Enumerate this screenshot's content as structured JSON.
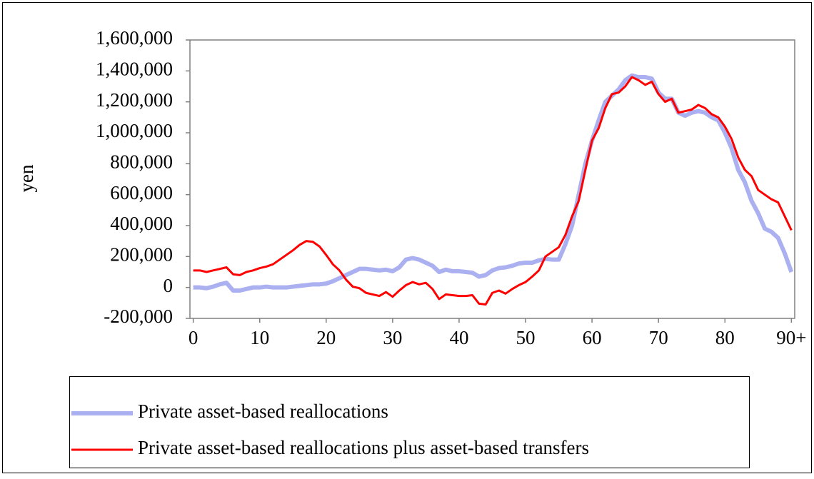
{
  "chart_data": {
    "type": "line",
    "y_label": "yen",
    "x": [
      0,
      1,
      2,
      3,
      4,
      5,
      6,
      7,
      8,
      9,
      10,
      11,
      12,
      13,
      14,
      15,
      16,
      17,
      18,
      19,
      20,
      21,
      22,
      23,
      24,
      25,
      26,
      27,
      28,
      29,
      30,
      31,
      32,
      33,
      34,
      35,
      36,
      37,
      38,
      39,
      40,
      41,
      42,
      43,
      44,
      45,
      46,
      47,
      48,
      49,
      50,
      51,
      52,
      53,
      54,
      55,
      56,
      57,
      58,
      59,
      60,
      61,
      62,
      63,
      64,
      65,
      66,
      67,
      68,
      69,
      70,
      71,
      72,
      73,
      74,
      75,
      76,
      77,
      78,
      79,
      80,
      81,
      82,
      83,
      84,
      85,
      86,
      87,
      88,
      89,
      90
    ],
    "xlim": [
      -0.5,
      90.5
    ],
    "xticks": [
      0,
      10,
      20,
      30,
      40,
      50,
      60,
      70,
      80,
      {
        "value": 90,
        "label": "90+"
      }
    ],
    "ylim": [
      -200000,
      1600000
    ],
    "yticks": [
      {
        "value": -200000,
        "label": "-200,000"
      },
      0,
      {
        "value": 200000,
        "label": "200,000"
      },
      {
        "value": 400000,
        "label": "400,000"
      },
      {
        "value": 600000,
        "label": "600,000"
      },
      {
        "value": 800000,
        "label": "800,000"
      },
      {
        "value": 1000000,
        "label": "1,000,000"
      },
      {
        "value": 1200000,
        "label": "1,200,000"
      },
      {
        "value": 1400000,
        "label": "1,400,000"
      },
      {
        "value": 1600000,
        "label": "1,600,000"
      }
    ],
    "series": [
      {
        "name": "Private asset-based reallocations",
        "color": "#aab0f0",
        "width": 6,
        "values": [
          0,
          0,
          -5000,
          5000,
          20000,
          30000,
          -20000,
          -20000,
          -10000,
          0,
          0,
          5000,
          0,
          0,
          0,
          5000,
          10000,
          15000,
          20000,
          20000,
          25000,
          40000,
          60000,
          80000,
          100000,
          120000,
          120000,
          115000,
          110000,
          115000,
          105000,
          130000,
          180000,
          190000,
          180000,
          160000,
          140000,
          100000,
          115000,
          105000,
          105000,
          100000,
          95000,
          70000,
          80000,
          110000,
          125000,
          130000,
          140000,
          155000,
          160000,
          160000,
          175000,
          185000,
          180000,
          180000,
          280000,
          400000,
          600000,
          800000,
          950000,
          1080000,
          1200000,
          1240000,
          1280000,
          1340000,
          1370000,
          1360000,
          1360000,
          1350000,
          1260000,
          1220000,
          1220000,
          1130000,
          1110000,
          1130000,
          1140000,
          1130000,
          1100000,
          1080000,
          1000000,
          900000,
          760000,
          680000,
          560000,
          480000,
          380000,
          360000,
          320000,
          220000,
          100000
        ]
      },
      {
        "name": "Private asset-based reallocations plus asset-based transfers",
        "color": "#ff0000",
        "width": 3,
        "values": [
          110000,
          110000,
          100000,
          110000,
          120000,
          130000,
          85000,
          80000,
          100000,
          110000,
          125000,
          135000,
          150000,
          180000,
          210000,
          240000,
          275000,
          300000,
          295000,
          265000,
          210000,
          150000,
          110000,
          50000,
          5000,
          -5000,
          -35000,
          -45000,
          -55000,
          -30000,
          -60000,
          -20000,
          15000,
          35000,
          20000,
          30000,
          -10000,
          -75000,
          -45000,
          -50000,
          -55000,
          -55000,
          -50000,
          -105000,
          -110000,
          -35000,
          -20000,
          -40000,
          -10000,
          15000,
          35000,
          70000,
          110000,
          200000,
          230000,
          260000,
          340000,
          460000,
          560000,
          760000,
          950000,
          1030000,
          1160000,
          1250000,
          1260000,
          1300000,
          1360000,
          1340000,
          1310000,
          1330000,
          1250000,
          1200000,
          1220000,
          1130000,
          1140000,
          1150000,
          1180000,
          1160000,
          1120000,
          1100000,
          1040000,
          960000,
          840000,
          760000,
          720000,
          630000,
          600000,
          570000,
          550000,
          460000,
          370000
        ]
      }
    ]
  }
}
